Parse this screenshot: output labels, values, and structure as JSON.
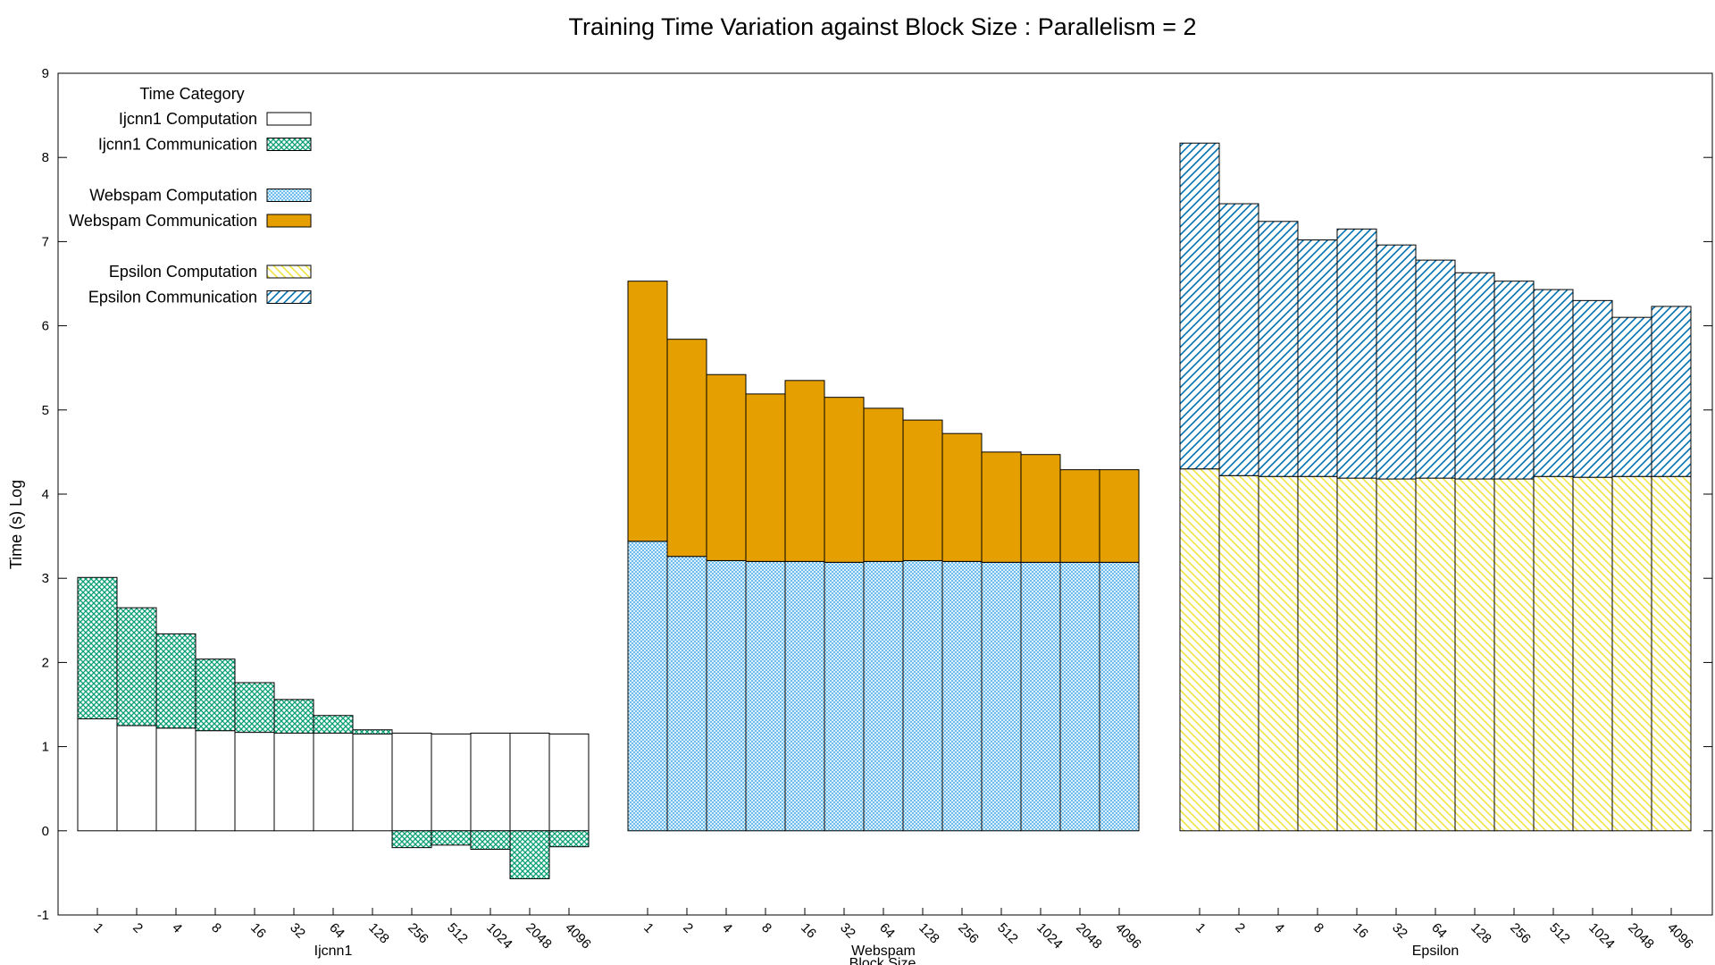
{
  "chart_data": {
    "type": "bar",
    "stacked": true,
    "title": "Training Time Variation against Block Size : Parallelism = 2",
    "xlabel": "Block Size",
    "ylabel": "Time (s) Log",
    "ylim": [
      -1,
      9
    ],
    "yticks": [
      "-1",
      "0",
      "1",
      "2",
      "3",
      "4",
      "5",
      "6",
      "7",
      "8",
      "9"
    ],
    "grid": false,
    "legend_title": "Time Category",
    "legend_position": "top-left",
    "categories": [
      "1",
      "2",
      "4",
      "8",
      "16",
      "32",
      "64",
      "128",
      "256",
      "512",
      "1024",
      "2048",
      "4096"
    ],
    "groups": [
      {
        "name": "Ijcnn1",
        "computation": {
          "name": "Ijcnn1 Computation",
          "pattern": "empty",
          "color": "#000000",
          "values": [
            1.33,
            1.25,
            1.22,
            1.19,
            1.17,
            1.16,
            1.16,
            1.15,
            1.16,
            1.15,
            1.16,
            1.16,
            1.15
          ]
        },
        "communication": {
          "name": "Ijcnn1 Communication",
          "pattern": "crosshatch",
          "color": "#009e73",
          "values": [
            1.68,
            1.4,
            1.12,
            0.85,
            0.59,
            0.4,
            0.21,
            0.05,
            -0.2,
            -0.17,
            -0.22,
            -0.57,
            -0.19
          ]
        }
      },
      {
        "name": "Webspam",
        "computation": {
          "name": "Webspam Computation",
          "pattern": "fine-crosshatch",
          "color": "#56b4e9",
          "values": [
            3.44,
            3.26,
            3.21,
            3.2,
            3.2,
            3.19,
            3.2,
            3.21,
            3.2,
            3.19,
            3.19,
            3.19,
            3.19
          ]
        },
        "communication": {
          "name": "Webspam Communication",
          "pattern": "solid",
          "color": "#e69f00",
          "values": [
            3.09,
            2.58,
            2.21,
            1.99,
            2.15,
            1.96,
            1.82,
            1.67,
            1.52,
            1.31,
            1.28,
            1.1,
            1.1
          ]
        }
      },
      {
        "name": "Epsilon",
        "computation": {
          "name": "Epsilon Computation",
          "pattern": "diagonal-back",
          "color": "#f0e442",
          "values": [
            4.3,
            4.22,
            4.21,
            4.21,
            4.19,
            4.18,
            4.19,
            4.18,
            4.18,
            4.21,
            4.2,
            4.21,
            4.21
          ]
        },
        "communication": {
          "name": "Epsilon Communication",
          "pattern": "diagonal-forward",
          "color": "#0072b2",
          "values": [
            3.87,
            3.23,
            3.03,
            2.81,
            2.96,
            2.78,
            2.59,
            2.45,
            2.35,
            2.22,
            2.1,
            1.89,
            2.02
          ]
        }
      }
    ]
  }
}
